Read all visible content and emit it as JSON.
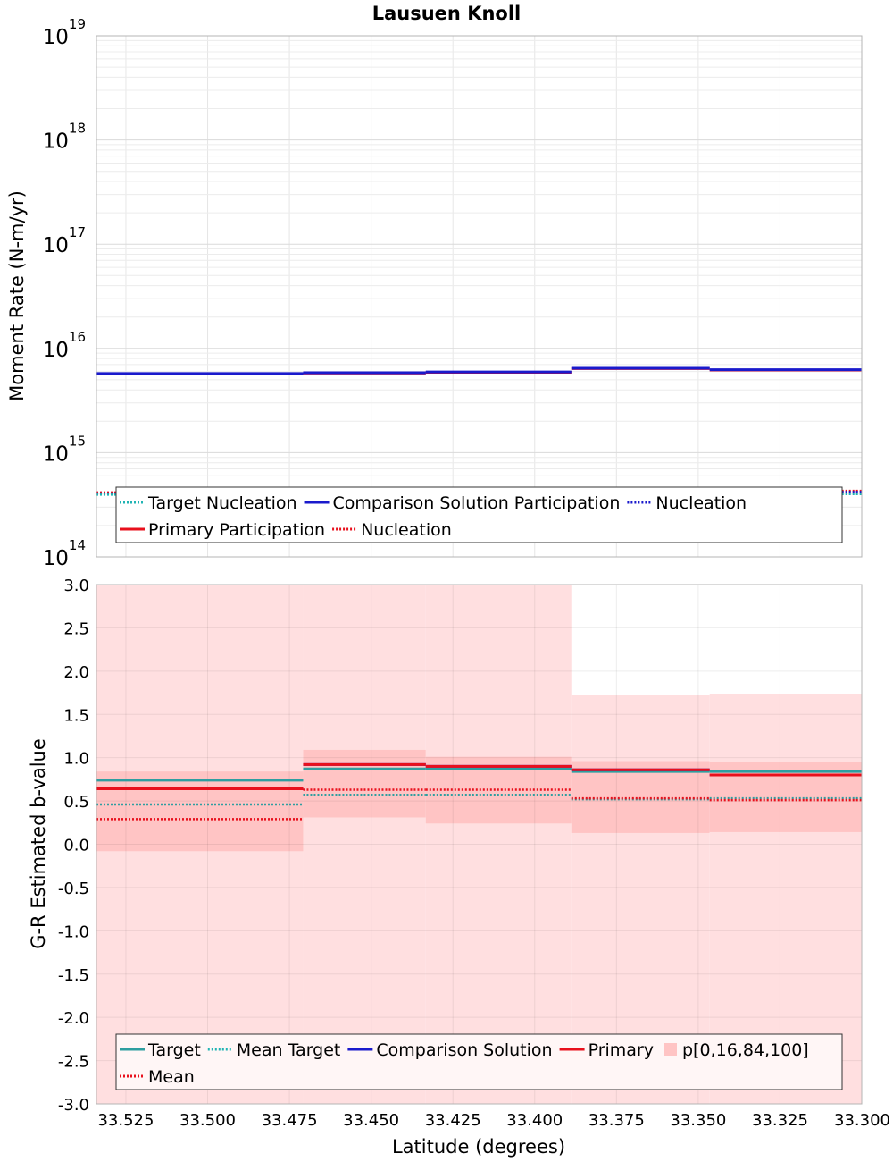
{
  "chart_data": [
    {
      "type": "line",
      "title": "Lausuen Knoll",
      "ylabel": "Moment Rate (N-m/yr)",
      "yscale": "log",
      "ylim": [
        100000000000000.0,
        1e+19
      ],
      "xlim": [
        33.534,
        33.3
      ],
      "x_reversed": true,
      "grid": true,
      "y_ticks": [
        {
          "base": "10",
          "exp": "14",
          "value": 100000000000000.0
        },
        {
          "base": "10",
          "exp": "15",
          "value": 1000000000000000.0
        },
        {
          "base": "10",
          "exp": "16",
          "value": 1e+16
        },
        {
          "base": "10",
          "exp": "17",
          "value": 1e+17
        },
        {
          "base": "10",
          "exp": "18",
          "value": 1e+18
        },
        {
          "base": "10",
          "exp": "19",
          "value": 1e+19
        }
      ],
      "bin_edges": [
        33.534,
        33.4708,
        33.4333,
        33.3888,
        33.3465,
        33.3
      ],
      "series": [
        {
          "name": "Primary Participation",
          "color": "#e8101c",
          "style": "solid",
          "values": [
            5700000000000000.0,
            5800000000000000.0,
            5900000000000000.0,
            6400000000000000.0,
            6200000000000000.0
          ]
        },
        {
          "name": "Comparison Solution Participation",
          "color": "#1a1acc",
          "style": "solid",
          "values": [
            5750000000000000.0,
            5850000000000000.0,
            5950000000000000.0,
            6450000000000000.0,
            6250000000000000.0
          ]
        },
        {
          "name": "Nucleation",
          "color": "#e8101c",
          "style": "dotted",
          "values": [
            415000000000000.0,
            422000000000000.0,
            426000000000000.0,
            435000000000000.0,
            430000000000000.0
          ]
        },
        {
          "name": "Nucleation",
          "color": "#1a1acc",
          "style": "dotted",
          "values": [
            405000000000000.0,
            412000000000000.0,
            416000000000000.0,
            425000000000000.0,
            420000000000000.0
          ]
        },
        {
          "name": "Target Nucleation",
          "color": "#20b4b4",
          "style": "dotted",
          "values": [
            395000000000000.0,
            402000000000000.0,
            406000000000000.0,
            410000000000000.0,
            400000000000000.0
          ]
        }
      ],
      "legend": {
        "placement": "lower",
        "rows": [
          [
            {
              "label": "Target Nucleation",
              "color": "#20b4b4",
              "style": "dotted"
            },
            {
              "label": "Comparison Solution Participation",
              "color": "#1a1acc",
              "style": "solid"
            },
            {
              "label": "Nucleation",
              "color": "#1a1acc",
              "style": "dotted"
            }
          ],
          [
            {
              "label": "Primary Participation",
              "color": "#e8101c",
              "style": "solid"
            },
            {
              "label": "Nucleation",
              "color": "#e8101c",
              "style": "dotted"
            }
          ]
        ]
      }
    },
    {
      "type": "line",
      "title": "",
      "xlabel": "Latitude (degrees)",
      "ylabel": "G-R Estimated b-value",
      "ylim": [
        -3.0,
        3.0
      ],
      "xlim": [
        33.534,
        33.3
      ],
      "x_reversed": true,
      "grid": true,
      "y_ticks": [
        "3.0",
        "2.5",
        "2.0",
        "1.5",
        "1.0",
        "0.5",
        "0.0",
        "-0.5",
        "-1.0",
        "-1.5",
        "-2.0",
        "-2.5",
        "-3.0"
      ],
      "x_ticks": [
        "33.525",
        "33.500",
        "33.475",
        "33.450",
        "33.425",
        "33.400",
        "33.375",
        "33.350",
        "33.325",
        "33.300"
      ],
      "bin_edges": [
        33.534,
        33.4708,
        33.4333,
        33.3888,
        33.3465,
        33.3
      ],
      "band_outer": {
        "low": [
          -3.0,
          -3.0,
          -3.0,
          -3.0,
          -3.0
        ],
        "high": [
          3.0,
          3.0,
          3.0,
          1.72,
          1.74
        ]
      },
      "band_inner": {
        "low": [
          -0.08,
          0.31,
          0.24,
          0.13,
          0.14
        ],
        "high": [
          0.84,
          1.09,
          1.01,
          0.96,
          0.95
        ]
      },
      "series": [
        {
          "name": "Target",
          "color": "#2e9ea0",
          "style": "solid",
          "values": [
            0.74,
            0.87,
            0.87,
            0.84,
            0.84
          ]
        },
        {
          "name": "Mean Target",
          "color": "#2e9ea0",
          "style": "dotted",
          "values": [
            0.46,
            0.57,
            0.57,
            0.52,
            0.53
          ]
        },
        {
          "name": "Comparison Solution",
          "color": "#1a1acc",
          "style": "solid",
          "values": [
            0.64,
            0.92,
            0.9,
            0.86,
            0.8
          ]
        },
        {
          "name": "Primary",
          "color": "#e8101c",
          "style": "solid",
          "values": [
            0.64,
            0.92,
            0.9,
            0.86,
            0.8
          ]
        },
        {
          "name": "Mean",
          "color": "#e8101c",
          "style": "dotted",
          "values": [
            0.29,
            0.63,
            0.63,
            0.53,
            0.51
          ]
        }
      ],
      "legend": {
        "placement": "lower",
        "rows": [
          [
            {
              "label": "Target",
              "color": "#2e9ea0",
              "style": "solid"
            },
            {
              "label": "Mean Target",
              "color": "#20b4b4",
              "style": "dotted"
            },
            {
              "label": "Comparison Solution",
              "color": "#1a1acc",
              "style": "solid"
            },
            {
              "label": "Primary",
              "color": "#e8101c",
              "style": "solid"
            },
            {
              "label": "p[0,16,84,100]",
              "color": "#ffc4c4",
              "style": "box"
            }
          ],
          [
            {
              "label": "Mean",
              "color": "#e8101c",
              "style": "dotted"
            }
          ]
        ]
      }
    }
  ]
}
